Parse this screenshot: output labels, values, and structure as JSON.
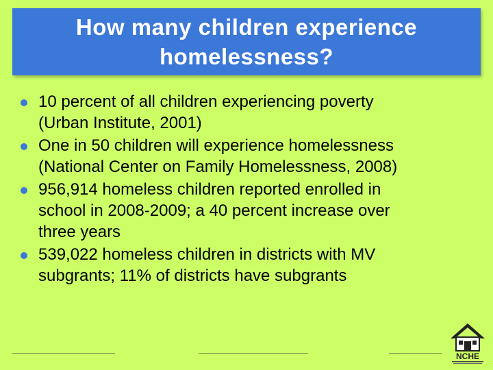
{
  "slide": {
    "title_line1": "How many children experience",
    "title_line2": "homelessness?",
    "bullets": [
      {
        "line1": "10 percent of all children experiencing poverty",
        "line2": "(Urban Institute, 2001)"
      },
      {
        "line1": "One in 50 children will experience homelessness",
        "line2": "(National Center on Family Homelessness, 2008)"
      },
      {
        "line1": "956,914 homeless children reported enrolled in",
        "line2": "school in 2008-2009; a 40 percent increase over",
        "line3": "three years"
      },
      {
        "line1": "539,022 homeless children in districts with MV",
        "line2": "subgrants; 11% of districts have subgrants"
      }
    ],
    "logo_text": "NCHE"
  },
  "colors": {
    "background": "#ccff66",
    "title_bg": "#3c78d8",
    "title_text": "#ffffff",
    "bullet": "#3c78d8"
  }
}
